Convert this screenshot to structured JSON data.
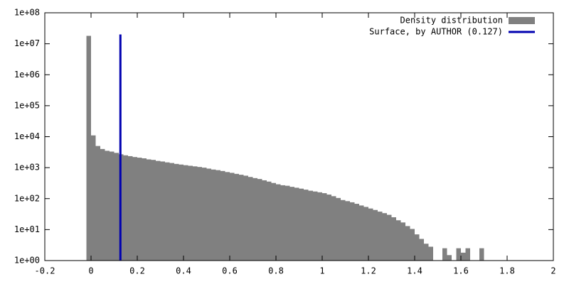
{
  "chart_data": {
    "type": "histogram",
    "log_y": true,
    "bins": [
      -0.02,
      0,
      0.02,
      0.04,
      0.06,
      0.08,
      0.1,
      0.12,
      0.14,
      0.16,
      0.18,
      0.2,
      0.22,
      0.24,
      0.26,
      0.28,
      0.3,
      0.32,
      0.34,
      0.36,
      0.38,
      0.4,
      0.42,
      0.44,
      0.46,
      0.48,
      0.5,
      0.52,
      0.54,
      0.56,
      0.58,
      0.6,
      0.62,
      0.64,
      0.66,
      0.68,
      0.7,
      0.72,
      0.74,
      0.76,
      0.78,
      0.8,
      0.82,
      0.84,
      0.86,
      0.88,
      0.9,
      0.92,
      0.94,
      0.96,
      0.98,
      1,
      1.02,
      1.04,
      1.06,
      1.08,
      1.1,
      1.12,
      1.14,
      1.16,
      1.18,
      1.2,
      1.22,
      1.24,
      1.26,
      1.28,
      1.3,
      1.32,
      1.34,
      1.36,
      1.38,
      1.4,
      1.42,
      1.44,
      1.46,
      1.48,
      1.5,
      1.52,
      1.54,
      1.56,
      1.58,
      1.6,
      1.62,
      1.64,
      1.66,
      1.68,
      1.7
    ],
    "series": [
      {
        "name": "Density distribution",
        "color": "#808080",
        "values": [
          18000000,
          11000,
          5000,
          4000,
          3500,
          3300,
          3000,
          2700,
          2500,
          2350,
          2200,
          2100,
          2000,
          1850,
          1780,
          1650,
          1580,
          1480,
          1410,
          1320,
          1260,
          1200,
          1150,
          1100,
          1050,
          1000,
          930,
          870,
          830,
          780,
          720,
          680,
          630,
          590,
          550,
          500,
          460,
          430,
          390,
          355,
          320,
          290,
          270,
          260,
          240,
          225,
          210,
          195,
          180,
          170,
          160,
          150,
          135,
          120,
          105,
          90,
          83,
          76,
          68,
          60,
          54,
          48,
          43,
          38,
          34,
          30,
          25,
          20,
          17,
          13,
          10.5,
          7,
          5,
          3.5,
          2.8,
          0,
          0,
          2.5,
          1.5,
          0,
          2.5,
          1.8,
          2.5,
          0,
          0,
          2.5
        ]
      },
      {
        "name": "Surface, by AUTHOR (0.127)",
        "color": "#0000b0",
        "x": 0.127,
        "y": [
          1,
          20000000
        ]
      }
    ],
    "xlim": [
      -0.2,
      2
    ],
    "xticks": [
      -0.2,
      0,
      0.2,
      0.4,
      0.6,
      0.8,
      1,
      1.2,
      1.4,
      1.6,
      1.8,
      2
    ],
    "ylim": [
      1,
      100000000
    ],
    "yticks": [
      {
        "value": 1,
        "label": "1e+00"
      },
      {
        "value": 10,
        "label": "1e+01"
      },
      {
        "value": 100,
        "label": "1e+02"
      },
      {
        "value": 1000,
        "label": "1e+03"
      },
      {
        "value": 10000,
        "label": "1e+04"
      },
      {
        "value": 100000,
        "label": "1e+05"
      },
      {
        "value": 1000000,
        "label": "1e+06"
      },
      {
        "value": 10000000,
        "label": "1e+07"
      },
      {
        "value": 100000000,
        "label": "1e+08"
      }
    ],
    "legend": "top-right"
  }
}
